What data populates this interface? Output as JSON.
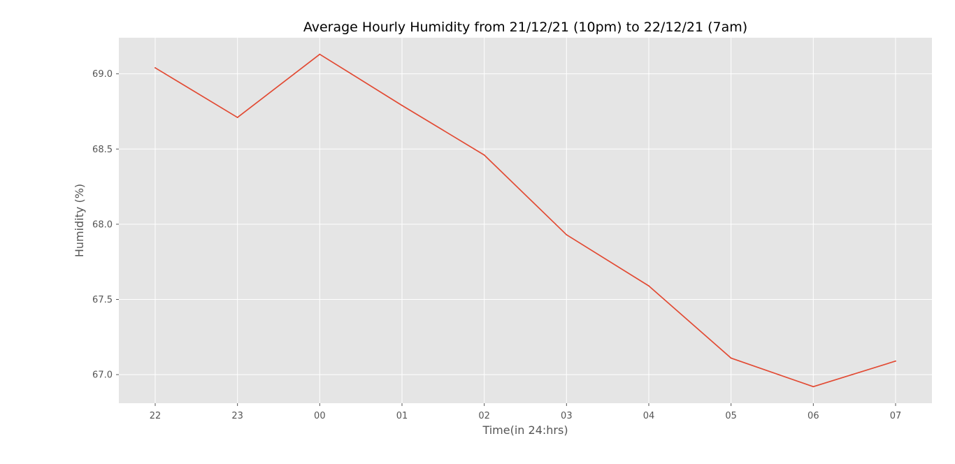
{
  "chart_data": {
    "type": "line",
    "title": "Average Hourly Humidity from 21/12/21 (10pm) to 22/12/21 (7am)",
    "xlabel": "Time(in 24:hrs)",
    "ylabel": "Humidity (%)",
    "categories": [
      "22",
      "23",
      "00",
      "01",
      "02",
      "03",
      "04",
      "05",
      "06",
      "07"
    ],
    "series": [
      {
        "name": "",
        "values": [
          69.04,
          68.71,
          69.13,
          68.79,
          68.46,
          67.93,
          67.59,
          67.11,
          66.92,
          67.09
        ]
      }
    ],
    "ylim": [
      66.81,
      69.24
    ],
    "yticks": [
      67.0,
      67.5,
      68.0,
      68.5,
      69.0
    ],
    "ytick_labels": [
      "67.0",
      "67.5",
      "68.0",
      "68.5",
      "69.0"
    ],
    "grid": true,
    "legend": "none",
    "colors": {
      "line": "#e24a33",
      "plot_background": "#e5e5e5",
      "grid": "#ffffff"
    }
  }
}
